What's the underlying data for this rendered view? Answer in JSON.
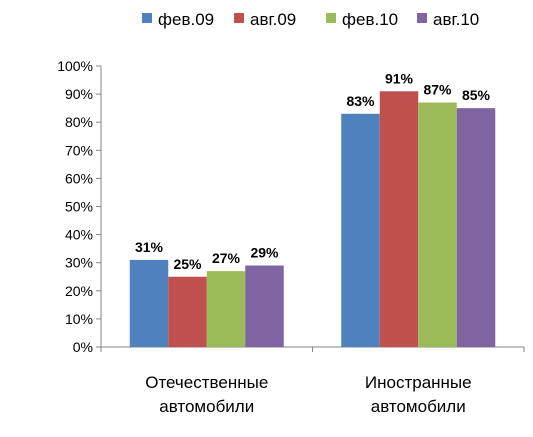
{
  "chart_data": {
    "type": "bar",
    "categories": [
      [
        "Отечественные",
        "автомобили"
      ],
      [
        "Иностранные",
        "автомобили"
      ]
    ],
    "series": [
      {
        "name": "фев.09",
        "color": "#4f81bd",
        "values": [
          31,
          83
        ],
        "labels": [
          "31%",
          "83%"
        ]
      },
      {
        "name": "авг.09",
        "color": "#c0504d",
        "values": [
          25,
          91
        ],
        "labels": [
          "25%",
          "91%"
        ]
      },
      {
        "name": "фев.10",
        "color": "#9bbb59",
        "values": [
          27,
          87
        ],
        "labels": [
          "27%",
          "87%"
        ]
      },
      {
        "name": "авг.10",
        "color": "#8064a2",
        "values": [
          29,
          85
        ],
        "labels": [
          "29%",
          "85%"
        ]
      }
    ],
    "ylim": [
      0,
      100
    ],
    "yticks": [
      "0%",
      "10%",
      "20%",
      "30%",
      "40%",
      "50%",
      "60%",
      "70%",
      "80%",
      "90%",
      "100%"
    ],
    "legend_position": "top",
    "grid": false
  }
}
